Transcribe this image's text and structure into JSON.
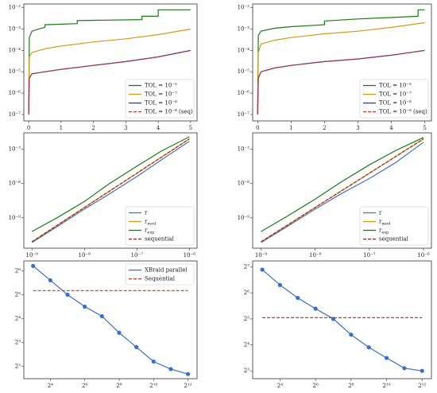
{
  "chart_data": [
    {
      "type": "line",
      "xscale": "linear",
      "yscale": "log",
      "xlim": [
        -0.15,
        5.2
      ],
      "ylim": [
        5e-08,
        0.015
      ],
      "xticks": [
        0,
        1,
        2,
        3,
        4,
        5
      ],
      "yticks": [
        {
          "value": 1e-07,
          "label": "10⁻⁷"
        },
        {
          "value": 1e-06,
          "label": "10⁻⁶"
        },
        {
          "value": 1e-05,
          "label": "10⁻⁵"
        },
        {
          "value": 0.0001,
          "label": "10⁻⁴"
        },
        {
          "value": 0.001,
          "label": "10⁻³"
        },
        {
          "value": 0.01,
          "label": "10⁻²"
        }
      ],
      "legend": "lower right",
      "series": [
        {
          "name": "TOL = 10⁻⁵",
          "color": "#1a7a1a",
          "dash": false,
          "x": [
            0,
            0.02,
            0.1,
            0.3,
            0.5,
            0.5,
            1.5,
            1.5,
            3.5,
            3.5,
            4.0,
            4.0,
            5.0
          ],
          "values": [
            1e-07,
            0.0004,
            0.0008,
            0.001,
            0.0012,
            0.0016,
            0.0018,
            0.0025,
            0.0028,
            0.004,
            0.004,
            0.008,
            0.008
          ]
        },
        {
          "name": "TOL = 10⁻⁷",
          "color": "#d49a1a",
          "dash": false,
          "x": [
            0,
            0.02,
            0.1,
            0.5,
            1,
            2,
            3,
            4,
            5
          ],
          "values": [
            1e-07,
            5e-05,
            8e-05,
            0.00012,
            0.00016,
            0.00025,
            0.00035,
            0.00055,
            0.001
          ]
        },
        {
          "name": "TOL = 10⁻⁸",
          "color": "#3b2fb0",
          "dash": false,
          "x": [
            0,
            0.02,
            0.1,
            0.5,
            1,
            2,
            3,
            4,
            5
          ],
          "values": [
            1e-07,
            5e-06,
            8e-06,
            1e-05,
            1.3e-05,
            2e-05,
            3e-05,
            5e-05,
            0.0001
          ]
        },
        {
          "name": "TOL = 10⁻⁸ (seq)",
          "color": "#c0392b",
          "dash": true,
          "x": [
            0,
            0.02,
            0.1,
            0.5,
            1,
            2,
            3,
            4,
            5
          ],
          "values": [
            1e-07,
            5e-06,
            8e-06,
            1e-05,
            1.3e-05,
            2e-05,
            3e-05,
            5e-05,
            0.0001
          ]
        }
      ]
    },
    {
      "type": "line",
      "xscale": "linear",
      "yscale": "log",
      "xlim": [
        -0.15,
        5.2
      ],
      "ylim": [
        5e-08,
        0.015
      ],
      "xticks": [
        0,
        1,
        2,
        3,
        4,
        5
      ],
      "yticks": [
        {
          "value": 1e-07,
          "label": "10⁻⁷"
        },
        {
          "value": 1e-06,
          "label": "10⁻⁶"
        },
        {
          "value": 1e-05,
          "label": "10⁻⁵"
        },
        {
          "value": 0.0001,
          "label": "10⁻⁴"
        },
        {
          "value": 0.001,
          "label": "10⁻³"
        },
        {
          "value": 0.01,
          "label": "10⁻²"
        }
      ],
      "legend": "lower right",
      "series": [
        {
          "name": "TOL = 10⁻⁵",
          "color": "#1a7a1a",
          "dash": false,
          "x": [
            0,
            0.02,
            0.1,
            0.5,
            1,
            2,
            2,
            3,
            4,
            4.8,
            4.8,
            5
          ],
          "values": [
            1e-07,
            0.0005,
            0.0008,
            0.0011,
            0.0013,
            0.0016,
            0.0024,
            0.003,
            0.0035,
            0.004,
            0.008,
            0.008
          ]
        },
        {
          "name": "TOL = 10⁻⁷",
          "color": "#d49a1a",
          "dash": false,
          "x": [
            0,
            0.02,
            0.1,
            0.5,
            1,
            2,
            3,
            4,
            5
          ],
          "values": [
            1e-07,
            8e-05,
            0.0002,
            0.0003,
            0.0004,
            0.0006,
            0.0008,
            0.0012,
            0.002
          ]
        },
        {
          "name": "TOL = 10⁻⁸",
          "color": "#3b2fb0",
          "dash": false,
          "x": [
            0,
            0.02,
            0.1,
            0.5,
            1,
            2,
            3,
            4,
            5
          ],
          "values": [
            1e-07,
            5e-06,
            1e-05,
            1.5e-05,
            2e-05,
            3e-05,
            4e-05,
            6e-05,
            0.0001
          ]
        },
        {
          "name": "TOL = 10⁻⁸ (seq)",
          "color": "#c0392b",
          "dash": true,
          "x": [
            0,
            0.02,
            0.1,
            0.5,
            1,
            2,
            3,
            4,
            5
          ],
          "values": [
            1e-07,
            5e-06,
            1e-05,
            1.5e-05,
            2e-05,
            3e-05,
            4e-05,
            6e-05,
            0.0001
          ]
        }
      ]
    },
    {
      "type": "line",
      "xscale": "log",
      "yscale": "log",
      "xlim": [
        7e-10,
        1.4e-06
      ],
      "ylim": [
        1.3e-10,
        3e-07
      ],
      "xticks": [
        {
          "value": 1e-09,
          "label": "10⁻⁹"
        },
        {
          "value": 1e-08,
          "label": "10⁻⁸"
        },
        {
          "value": 1e-07,
          "label": "10⁻⁷"
        },
        {
          "value": 1e-06,
          "label": "10⁻⁶"
        }
      ],
      "yticks": [
        {
          "value": 1e-09,
          "label": "10⁻⁹"
        },
        {
          "value": 1e-08,
          "label": "10⁻⁸"
        },
        {
          "value": 1e-07,
          "label": "10⁻⁷"
        }
      ],
      "legend": "lower right",
      "series": [
        {
          "name": "r",
          "color": "#4a6fd0",
          "dash": false,
          "x": [
            1e-09,
            3e-09,
            1e-08,
            3e-08,
            1e-07,
            3e-07,
            1e-06
          ],
          "values": [
            1.9e-10,
            5.5e-10,
            1.8e-09,
            5e-09,
            1.6e-08,
            5e-08,
            1.7e-07
          ]
        },
        {
          "name": "r_mod",
          "color": "#d49a1a",
          "dash": false,
          "x": [
            1e-09,
            3e-09,
            1e-08,
            3e-08,
            1e-07,
            3e-07,
            1e-06
          ],
          "values": [
            2e-10,
            6e-10,
            2e-09,
            6e-09,
            2e-08,
            6e-08,
            2e-07
          ]
        },
        {
          "name": "r_exp",
          "color": "#1a7a1a",
          "dash": false,
          "x": [
            1e-09,
            3e-09,
            1e-08,
            3e-08,
            1e-07,
            3e-07,
            1e-06
          ],
          "values": [
            4e-10,
            1e-09,
            3e-09,
            1e-08,
            3.2e-08,
            9e-08,
            2.3e-07
          ]
        },
        {
          "name": "sequential",
          "color": "#a0200f",
          "dash": true,
          "x": [
            1e-09,
            3e-09,
            1e-08,
            3e-08,
            1e-07,
            3e-07,
            1e-06
          ],
          "values": [
            2e-10,
            6e-10,
            2e-09,
            6e-09,
            2e-08,
            6e-08,
            2e-07
          ]
        }
      ]
    },
    {
      "type": "line",
      "xscale": "log",
      "yscale": "log",
      "xlim": [
        7e-10,
        1.4e-06
      ],
      "ylim": [
        1.3e-10,
        3e-07
      ],
      "xticks": [
        {
          "value": 1e-09,
          "label": "10⁻⁹"
        },
        {
          "value": 1e-08,
          "label": "10⁻⁸"
        },
        {
          "value": 1e-07,
          "label": "10⁻⁷"
        },
        {
          "value": 1e-06,
          "label": "10⁻⁶"
        }
      ],
      "yticks": [
        {
          "value": 1e-09,
          "label": "10⁻⁹"
        },
        {
          "value": 1e-08,
          "label": "10⁻⁸"
        },
        {
          "value": 1e-07,
          "label": "10⁻⁷"
        }
      ],
      "legend": "lower right",
      "series": [
        {
          "name": "r",
          "color": "#4a6fd0",
          "dash": false,
          "x": [
            1e-09,
            3e-09,
            1e-08,
            3e-08,
            1e-07,
            3e-07,
            1e-06
          ],
          "values": [
            1.9e-10,
            5.5e-10,
            1.8e-09,
            5e-09,
            1.4e-08,
            4e-08,
            1.6e-07
          ]
        },
        {
          "name": "r_mod",
          "color": "#d49a1a",
          "dash": false,
          "x": [
            1e-09,
            3e-09,
            1e-08,
            3e-08,
            1e-07,
            3e-07,
            1e-06
          ],
          "values": [
            2e-10,
            6e-10,
            2e-09,
            6e-09,
            2e-08,
            6e-08,
            2e-07
          ]
        },
        {
          "name": "r_exp",
          "color": "#1a7a1a",
          "dash": false,
          "x": [
            1e-09,
            3e-09,
            1e-08,
            3e-08,
            1e-07,
            3e-07,
            1e-06
          ],
          "values": [
            4e-10,
            1.1e-09,
            3.5e-09,
            1.1e-08,
            3.5e-08,
            9e-08,
            2.2e-07
          ]
        },
        {
          "name": "sequential",
          "color": "#a0200f",
          "dash": true,
          "x": [
            1e-09,
            3e-09,
            1e-08,
            3e-08,
            1e-07,
            3e-07,
            1e-06
          ],
          "values": [
            2e-10,
            6e-10,
            2e-09,
            6e-09,
            2e-08,
            6e-08,
            2e-07
          ]
        }
      ]
    },
    {
      "type": "line",
      "xscale": "log",
      "yscale": "log",
      "xlim": [
        5.5,
        5900
      ],
      "ylim": [
        2.8,
        85
      ],
      "marker": true,
      "xticks": [
        {
          "value": 16,
          "label": "2⁴"
        },
        {
          "value": 64,
          "label": "2⁶"
        },
        {
          "value": 256,
          "label": "2⁸"
        },
        {
          "value": 1024,
          "label": "2¹⁰"
        },
        {
          "value": 4096,
          "label": "2¹²"
        }
      ],
      "yticks": [
        {
          "value": 4,
          "label": "2²"
        },
        {
          "value": 8,
          "label": "2³"
        },
        {
          "value": 16,
          "label": "2⁴"
        },
        {
          "value": 32,
          "label": "2⁵"
        },
        {
          "value": 64,
          "label": "2⁶"
        }
      ],
      "legend": "upper right",
      "series": [
        {
          "name": "XBraid parallel",
          "color": "#3a6fc4",
          "dash": false,
          "x": [
            8,
            16,
            32,
            64,
            128,
            256,
            512,
            1024,
            2048,
            4096
          ],
          "values": [
            73.5,
            48.5,
            32,
            22.6,
            17.1,
            10.6,
            7,
            4.6,
            3.7,
            3.2
          ]
        },
        {
          "name": "Sequential",
          "color": "#c0392b",
          "dash": true,
          "x": [
            8,
            4096
          ],
          "values": [
            36,
            36
          ]
        }
      ]
    },
    {
      "type": "line",
      "xscale": "log",
      "yscale": "log",
      "xlim": [
        5.5,
        5900
      ],
      "ylim": [
        6.5,
        150
      ],
      "marker": true,
      "xticks": [
        {
          "value": 16,
          "label": "2⁴"
        },
        {
          "value": 64,
          "label": "2⁶"
        },
        {
          "value": 256,
          "label": "2⁸"
        },
        {
          "value": 1024,
          "label": "2¹⁰"
        },
        {
          "value": 4096,
          "label": "2¹²"
        }
      ],
      "yticks": [
        {
          "value": 8,
          "label": "2³"
        },
        {
          "value": 16,
          "label": "2⁴"
        },
        {
          "value": 32,
          "label": "2⁵"
        },
        {
          "value": 64,
          "label": "2⁶"
        },
        {
          "value": 128,
          "label": "2⁷"
        }
      ],
      "series": [
        {
          "color": "#3a6fc4",
          "dash": false,
          "x": [
            8,
            16,
            32,
            64,
            128,
            256,
            512,
            1024,
            2048,
            4096
          ],
          "values": [
            119,
            79,
            56,
            42,
            32,
            21,
            15,
            11.3,
            8.6,
            8
          ]
        },
        {
          "color": "#c0392b",
          "dash": true,
          "x": [
            8,
            4096
          ],
          "values": [
            33,
            33
          ]
        }
      ]
    }
  ]
}
